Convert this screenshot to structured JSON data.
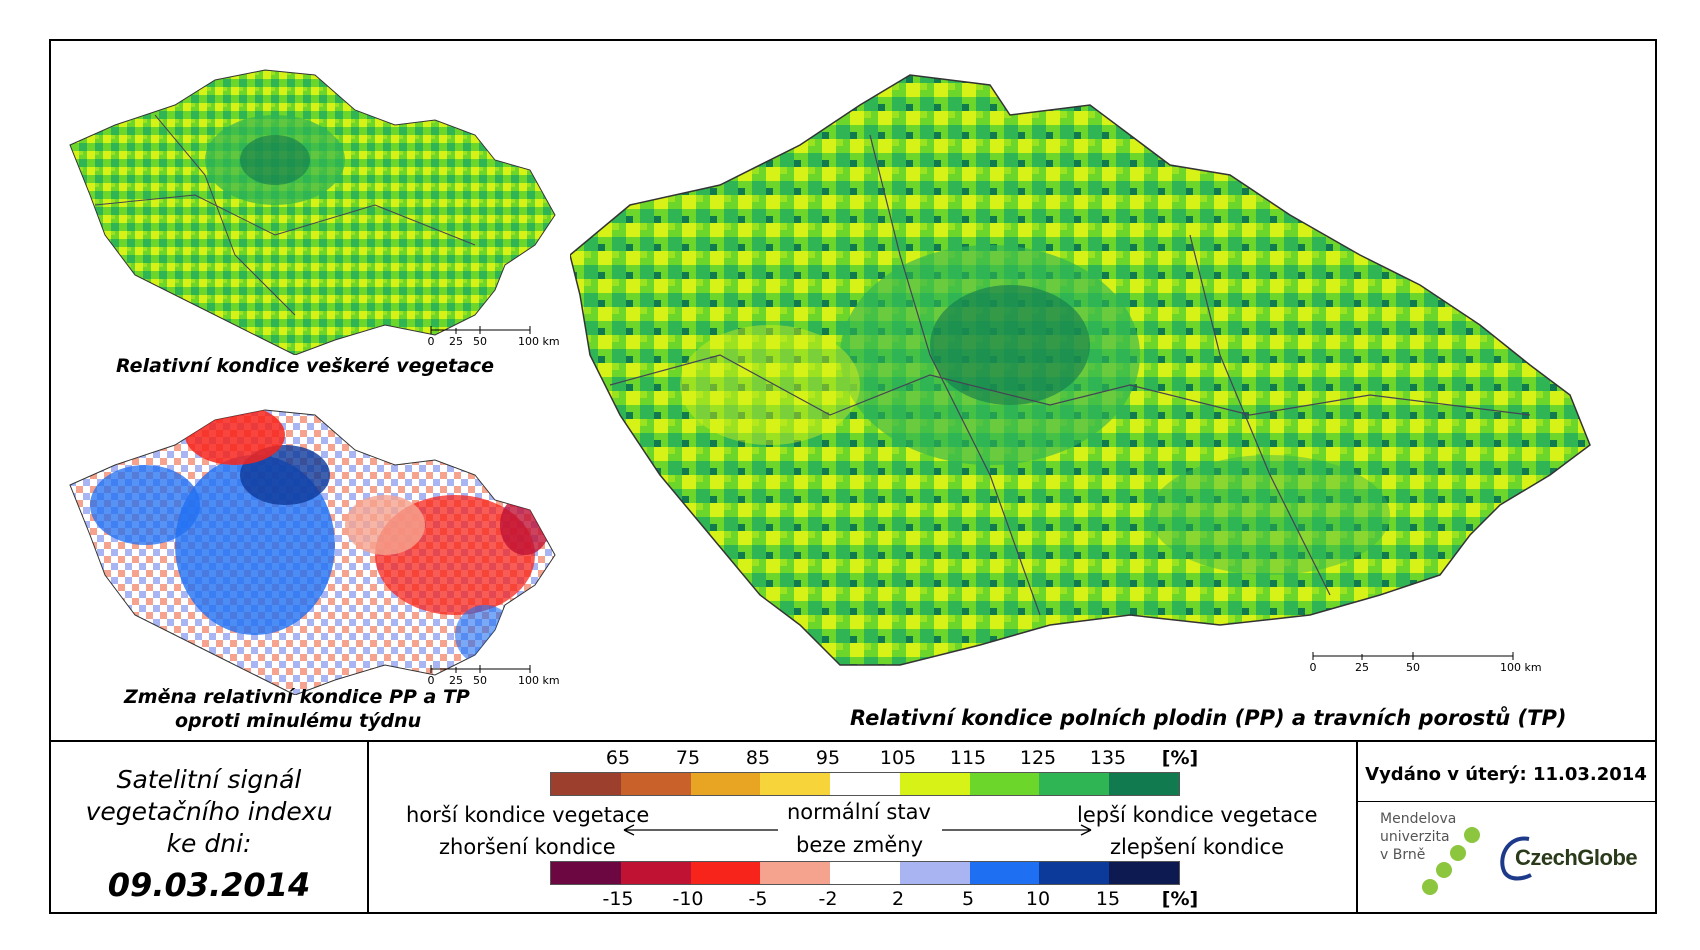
{
  "maps": {
    "vegetation": {
      "caption": "Relativní kondice veškeré vegetace"
    },
    "change": {
      "caption_line1": "Změna relativní kondice PP a TP",
      "caption_line2": "oproti minulému týdnu"
    },
    "main": {
      "caption": "Relativní kondice polních plodin (PP) a travních porostů (TP)"
    }
  },
  "scalebar": {
    "labels": [
      "0",
      "25",
      "50",
      "100 km"
    ]
  },
  "info": {
    "line1": "Satelitní signál",
    "line2": "vegetačního indexu",
    "line3": "ke dni:",
    "date": "09.03.2014"
  },
  "legend": {
    "condition": {
      "ticks": [
        "65",
        "75",
        "85",
        "95",
        "105",
        "115",
        "125",
        "135"
      ],
      "unit": "[%]",
      "colors": [
        "#9c3f2c",
        "#c8622a",
        "#e8a423",
        "#f6d43a",
        "#ffffff",
        "#d6f217",
        "#6dd62b",
        "#2fb554",
        "#117a4f"
      ]
    },
    "change": {
      "ticks": [
        "-15",
        "-10",
        "-5",
        "-2",
        "2",
        "5",
        "10",
        "15"
      ],
      "unit": "[%]",
      "colors": [
        "#6c0742",
        "#c01334",
        "#f7241c",
        "#f5a38f",
        "#ffffff",
        "#a8b5f2",
        "#1f6ff2",
        "#0c3a9a",
        "#0d1a52"
      ]
    },
    "worse_condition": "horší kondice vegetace",
    "worse_change": "zhoršení kondice",
    "normal": "normální stav",
    "no_change": "beze změny",
    "better_condition": "lepší kondice vegetace",
    "better_change": "zlepšení kondice"
  },
  "issued": "Vydáno v úterý: 11.03.2014",
  "logos": {
    "mendel": [
      "Mendelova",
      "univerzita",
      "v Brně"
    ],
    "czechglobe": "CzechGlobe"
  }
}
